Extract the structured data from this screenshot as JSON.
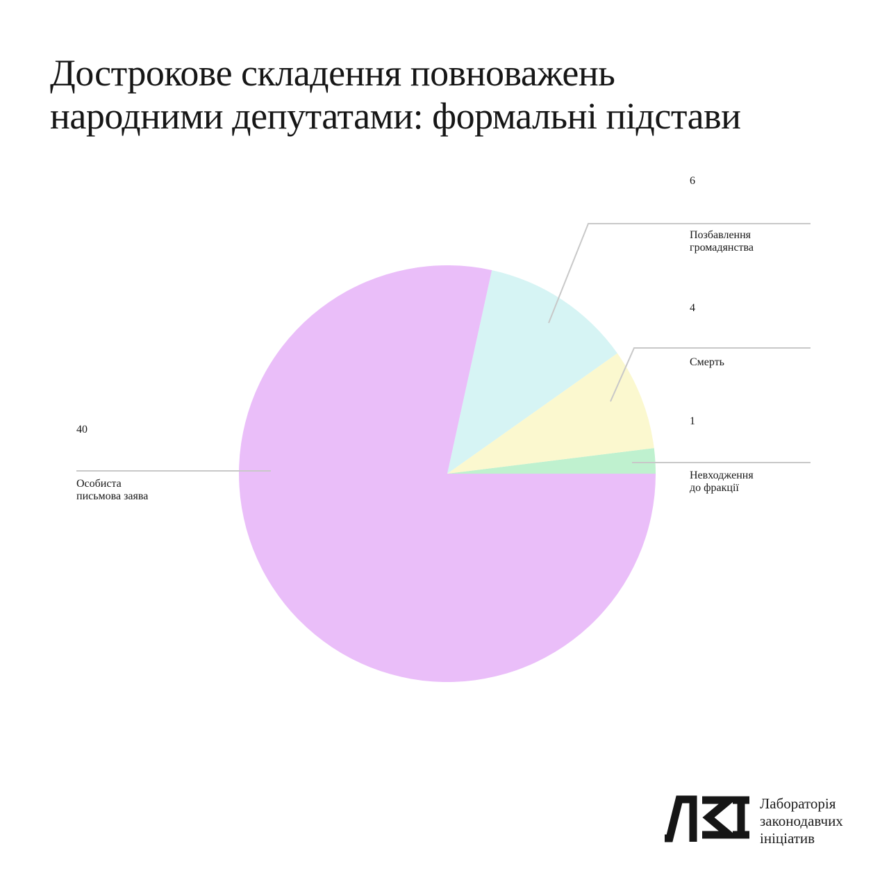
{
  "title": {
    "line1": "Дострокове складення повноважень",
    "line2": "народними депутатами: формальні підстави"
  },
  "chart_data": {
    "type": "pie",
    "title": "Дострокове складення повноважень народними депутатами: формальні підстави",
    "total": 51,
    "start_angle_deg": 0,
    "direction": "counterclockwise",
    "slices": [
      {
        "label": "Невходження до фракції",
        "value": 1,
        "color": "#bff1cf"
      },
      {
        "label": "Смерть",
        "value": 4,
        "color": "#fbf8cf"
      },
      {
        "label": "Позбавлення громадянства",
        "value": 6,
        "color": "#d6f4f4"
      },
      {
        "label": "Особиста письмова заява",
        "value": 40,
        "color": "#eabef9"
      }
    ],
    "legend_position": "callouts",
    "grid": false
  },
  "callouts": {
    "c6": {
      "value": "6",
      "line1": "Позбавлення",
      "line2": "громадянства"
    },
    "c4": {
      "value": "4",
      "line1": "Смерть",
      "line2": ""
    },
    "c1": {
      "value": "1",
      "line1": "Невходження",
      "line2": "до фракції"
    },
    "c40": {
      "value": "40",
      "line1": "Особиста",
      "line2": "письмова заява"
    }
  },
  "logo": {
    "monogram": "ЛЗІ",
    "line1": "Лабораторія",
    "line2": "законодавчих",
    "line3": "ініціатив"
  },
  "colors": {
    "leader_line": "#c8c8c8",
    "text": "#161616",
    "background": "#ffffff"
  }
}
